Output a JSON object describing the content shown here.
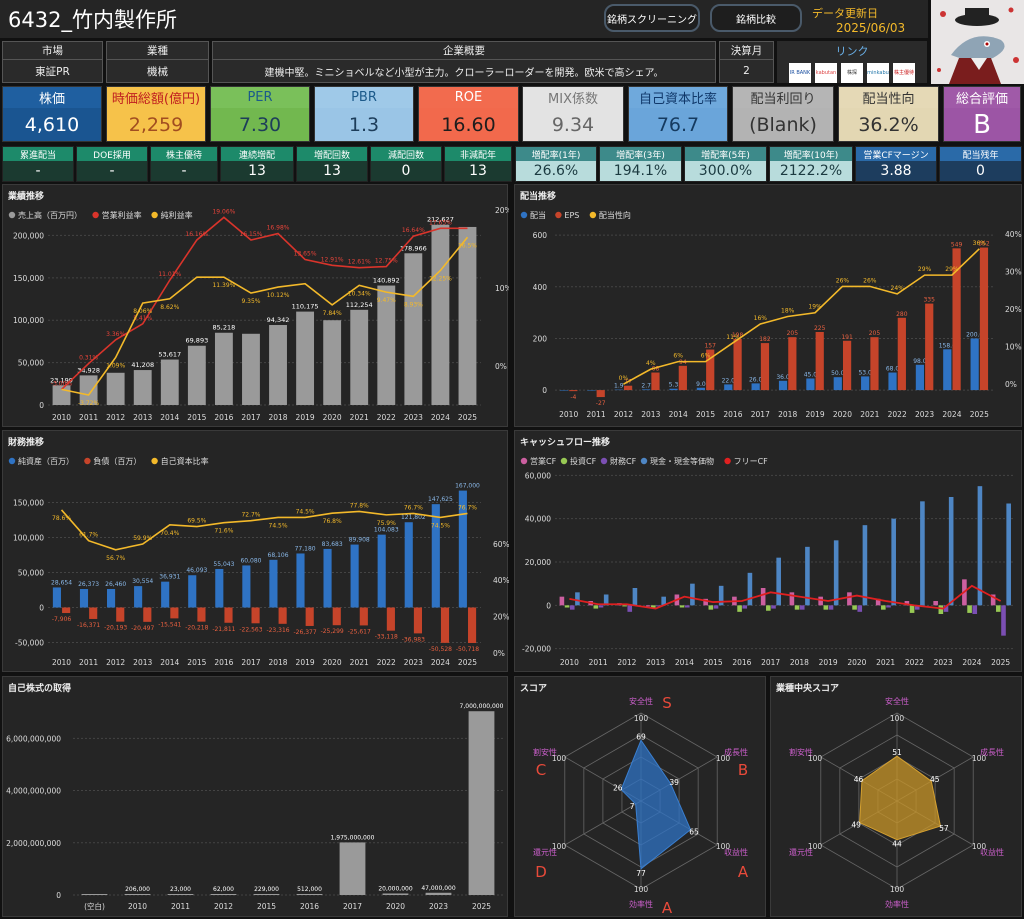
{
  "header": {
    "title": "6432_竹内製作所",
    "btn_screening": "銘柄スクリーニング",
    "btn_compare": "銘柄比較",
    "update_label": "データ更新日",
    "update_date": "2025/06/03"
  },
  "info": {
    "market_label": "市場",
    "market": "東証PR",
    "industry_label": "業種",
    "industry": "機械",
    "overview_label": "企業概要",
    "overview": "建機中堅。ミニショベルなど小型が主力。クローラーローダーを開発。欧米で高シェア。",
    "fiscal_label": "決算月",
    "fiscal": "2",
    "link_label": "リンク",
    "links": [
      "IR BANK",
      "kabutan",
      "株探",
      "minkabu",
      "株主優待"
    ]
  },
  "kpis": [
    {
      "label": "株価",
      "value": "4,610",
      "lbg": "#1f5fa0",
      "vbg": "#1a5591",
      "lc": "#fff",
      "vc": "#fff"
    },
    {
      "label": "時価総額(億円)",
      "value": "2,259",
      "lbg": "#f6c24a",
      "vbg": "#f6c24a",
      "lc": "#c02020",
      "vc": "#a14d20"
    },
    {
      "label": "PER",
      "value": "7.30",
      "lbg": "#7ac05a",
      "vbg": "#72b84f",
      "lc": "#1c5a8a",
      "vc": "#1d3d5a"
    },
    {
      "label": "PBR",
      "value": "1.3",
      "lbg": "#9fc9e8",
      "vbg": "#9ac5e6",
      "lc": "#1c5a8a",
      "vc": "#1d3d5a"
    },
    {
      "label": "ROE",
      "value": "16.60",
      "lbg": "#f26b4e",
      "vbg": "#f2694c",
      "lc": "#ffffff",
      "vc": "#1d1d1d"
    },
    {
      "label": "MIX係数",
      "value": "9.34",
      "lbg": "#e3e3e3",
      "vbg": "#e3e3e3",
      "lc": "#777",
      "vc": "#666"
    },
    {
      "label": "自己資本比率",
      "value": "76.7",
      "lbg": "#6fa9dc",
      "vbg": "#6aa5da",
      "lc": "#10386a",
      "vc": "#153a5f"
    },
    {
      "label": "配当利回り",
      "value": "(Blank)",
      "lbg": "#b5b5b5",
      "vbg": "#b3b3b3",
      "lc": "#333",
      "vc": "#333"
    },
    {
      "label": "配当性向",
      "value": "36.2%",
      "lbg": "#e5d9b6",
      "vbg": "#e3d7b3",
      "lc": "#333",
      "vc": "#333"
    },
    {
      "label": "総合評価",
      "value": "B",
      "lbg": "#a05aa8",
      "vbg": "#9c55a5",
      "lc": "#fff",
      "vc": "#fff"
    }
  ],
  "small_kpis": [
    {
      "label": "累進配当",
      "value": "-",
      "bg": "#1d8a6a"
    },
    {
      "label": "DOE採用",
      "value": "-",
      "bg": "#1d8a6a"
    },
    {
      "label": "株主優待",
      "value": "-",
      "bg": "#1d8a6a"
    },
    {
      "label": "連続増配",
      "value": "13",
      "bg": "#1d8a6a"
    },
    {
      "label": "増配回数",
      "value": "13",
      "bg": "#1d8a6a"
    },
    {
      "label": "減配回数",
      "value": "0",
      "bg": "#1d8a6a"
    },
    {
      "label": "非減配年",
      "value": "13",
      "bg": "#1d8a6a"
    },
    {
      "label": "増配率(1年)",
      "value": "26.6%",
      "bg": "#3d8a8a"
    },
    {
      "label": "増配率(3年)",
      "value": "194.1%",
      "bg": "#3d8a8a"
    },
    {
      "label": "増配率(5年)",
      "value": "300.0%",
      "bg": "#3d8a8a"
    },
    {
      "label": "増配率(10年)",
      "value": "2122.2%",
      "bg": "#3d8a8a"
    },
    {
      "label": "営業CFマージン",
      "value": "3.88",
      "bg": "#2a6aa8"
    },
    {
      "label": "配当残年",
      "value": "0",
      "bg": "#2a6aa8"
    }
  ],
  "colors": {
    "gray": "#9a9a9a",
    "red": "#d9342b",
    "yellow": "#f3b92a",
    "blue": "#2f73c4",
    "orange": "#c6442a",
    "green": "#98c954",
    "purple": "#7b4fb3",
    "lblue": "#4e86c4",
    "pink": "#cc5fa0"
  },
  "chart_data": [
    {
      "id": "perf",
      "type": "bar",
      "title": "業績推移",
      "legend": [
        "売上高（百万円）",
        "営業利益率",
        "純利益率"
      ],
      "categories": [
        "2010",
        "2011",
        "2012",
        "2013",
        "2014",
        "2015",
        "2016",
        "2017",
        "2018",
        "2019",
        "2020",
        "2021",
        "2022",
        "2023",
        "2024",
        "2025"
      ],
      "series": [
        {
          "name": "売上高（百万円）",
          "values": [
            23199,
            34928,
            38000,
            41208,
            53617,
            69893,
            85218,
            84000,
            94342,
            110175,
            100000,
            112254,
            140892,
            178966,
            212627,
            210000
          ],
          "labels": [
            "23,199",
            "34,928",
            "",
            "41,208",
            "53,617",
            "69,893",
            "85,218",
            "",
            "94,342",
            "110,175",
            "",
            "112,254",
            "140,892",
            "178,966",
            "212,627",
            ""
          ]
        },
        {
          "name": "営業利益率",
          "values": [
            -3.0,
            0.31,
            3.36,
            5.41,
            11.01,
            16.16,
            19.06,
            16.15,
            16.98,
            13.65,
            12.91,
            12.61,
            12.75,
            16.64,
            17.65,
            17.65
          ],
          "labels": [
            "-3.00%",
            "0.31%",
            "3.36%",
            "5.41%",
            "11.01%",
            "16.16%",
            "19.06%",
            "16.15%",
            "16.98%",
            "13.65%",
            "12.91%",
            "12.61%",
            "12.75%",
            "16.64%",
            "17.65%",
            ""
          ]
        },
        {
          "name": "純利益率",
          "values": [
            -3.0,
            -3.72,
            1.09,
            8.06,
            8.62,
            11.39,
            11.39,
            9.35,
            10.12,
            10.55,
            7.84,
            10.34,
            9.47,
            8.93,
            12.25,
            16.5
          ],
          "labels": [
            "",
            "-3.72%",
            "1.09%",
            "8.06%",
            "8.62%",
            "",
            "11.39%",
            "9.35%",
            "10.12%",
            "",
            "7.84%",
            "10.34%",
            "9.47%",
            "8.93%",
            "12.25%",
            "16.5%"
          ]
        }
      ],
      "ylim_left": [
        0,
        230000
      ],
      "yticks_left": [
        0,
        50000,
        100000,
        150000,
        200000
      ],
      "ylim_right": [
        -5,
        20
      ],
      "yticks_right": [
        0,
        10,
        20
      ]
    },
    {
      "id": "div",
      "type": "bar",
      "title": "配当推移",
      "legend": [
        "配当",
        "EPS",
        "配当性向"
      ],
      "categories": [
        "2010",
        "2011",
        "2012",
        "2013",
        "2014",
        "2015",
        "2016",
        "2017",
        "2018",
        "2019",
        "2020",
        "2021",
        "2022",
        "2023",
        "2024",
        "2025"
      ],
      "series": [
        {
          "name": "配当",
          "values": [
            0,
            0,
            1.9,
            2.7,
            5.3,
            9.0,
            22.0,
            26.0,
            36.0,
            45.0,
            50.0,
            53.0,
            68.0,
            98.0,
            158.0,
            200.0
          ]
        },
        {
          "name": "EPS",
          "values": [
            -4,
            -27,
            17,
            68,
            94,
            157,
            198,
            182,
            205,
            225,
            191,
            205,
            280,
            335,
            549,
            552
          ]
        },
        {
          "name": "配当性向",
          "values": [
            null,
            null,
            0,
            4,
            6,
            6,
            11,
            16,
            18,
            19,
            26,
            26,
            24,
            29,
            29,
            36
          ]
        }
      ],
      "ylim_left": [
        -50,
        620
      ],
      "yticks_left": [
        0,
        200,
        400,
        600
      ],
      "ylim_right": [
        -5,
        41
      ],
      "yticks_right": [
        0,
        10,
        20,
        30,
        40
      ]
    },
    {
      "id": "fin",
      "type": "bar",
      "title": "財務推移",
      "legend": [
        "純資産（百万）",
        "負債（百万）",
        "自己資本比率"
      ],
      "categories": [
        "2010",
        "2011",
        "2012",
        "2013",
        "2014",
        "2015",
        "2016",
        "2017",
        "2018",
        "2019",
        "2020",
        "2021",
        "2022",
        "2023",
        "2024",
        "2025"
      ],
      "series": [
        {
          "name": "純資産（百万）",
          "values": [
            28654,
            26373,
            26460,
            30554,
            36931,
            46093,
            55043,
            60080,
            68106,
            77180,
            83683,
            89908,
            104083,
            121802,
            147625,
            167000
          ]
        },
        {
          "name": "負債（百万）",
          "values": [
            -7906,
            -16371,
            -20193,
            -20497,
            -15541,
            -20218,
            -21811,
            -22563,
            -23316,
            -26377,
            -25299,
            -25617,
            -33118,
            -36983,
            -50528,
            -50718
          ]
        },
        {
          "name": "自己資本比率",
          "values": [
            78.6,
            61.7,
            56.7,
            59.9,
            70.4,
            69.5,
            71.6,
            72.7,
            74.5,
            74.5,
            76.8,
            77.8,
            75.9,
            76.7,
            74.5,
            76.7
          ]
        }
      ],
      "ylim_left": [
        -65000,
        195000
      ],
      "yticks_left": [
        -50000,
        0,
        50000,
        100000,
        150000
      ],
      "ylim_right": [
        0,
        100
      ],
      "yticks_right": [
        0,
        20,
        40,
        60
      ]
    },
    {
      "id": "cf",
      "type": "bar",
      "title": "キャッシュフロー推移",
      "legend": [
        "営業CF",
        "投資CF",
        "財務CF",
        "現金・現金等価物",
        "フリーCF"
      ],
      "categories": [
        "2010",
        "2011",
        "2012",
        "2013",
        "2014",
        "2015",
        "2016",
        "2017",
        "2018",
        "2019",
        "2020",
        "2021",
        "2022",
        "2023",
        "2024",
        "2025"
      ],
      "series": [
        {
          "name": "営業CF",
          "values": [
            4000,
            2000,
            1000,
            -500,
            5000,
            3000,
            4000,
            8000,
            6000,
            4000,
            6000,
            3000,
            2000,
            2000,
            12000,
            5000
          ]
        },
        {
          "name": "投資CF",
          "values": [
            -1000,
            -1500,
            -500,
            -1000,
            -1000,
            -2000,
            -3000,
            -2500,
            -2000,
            -2000,
            -2000,
            -2000,
            -3500,
            -4000,
            -3500,
            -3000
          ]
        },
        {
          "name": "財務CF",
          "values": [
            -2000,
            -1000,
            -3000,
            -500,
            -1000,
            -1500,
            -1500,
            -1500,
            -2000,
            -2000,
            -3000,
            -1000,
            -2000,
            -3000,
            -4000,
            -14000
          ]
        },
        {
          "name": "現金・現金等価物",
          "values": [
            6000,
            5000,
            8000,
            4000,
            10000,
            9000,
            15000,
            22000,
            27000,
            30000,
            37000,
            40000,
            48000,
            50000,
            55000,
            47000
          ]
        },
        {
          "name": "フリーCF",
          "values": [
            3000,
            500,
            500,
            -1500,
            4000,
            1500,
            2000,
            6000,
            4000,
            2000,
            4500,
            2000,
            0,
            -1500,
            9000,
            2000
          ]
        }
      ],
      "ylim": [
        -22000,
        62000
      ],
      "yticks": [
        -20000,
        0,
        20000,
        40000,
        60000
      ]
    },
    {
      "id": "buyback",
      "type": "bar",
      "title": "自己株式の取得",
      "categories": [
        "(空白)",
        "2010",
        "2011",
        "2012",
        "2015",
        "2016",
        "2017",
        "2020",
        "2023",
        "2025"
      ],
      "values": [
        0,
        206000,
        23000,
        62000,
        229000,
        512000,
        1975000000,
        20000000,
        47000000,
        7000000000
      ],
      "labels": [
        "",
        "206,000",
        "23,000",
        "62,000",
        "229,000",
        "512,000",
        "1,975,000,000",
        "20,000,000",
        "47,000,000",
        "7,000,000,000"
      ],
      "ylim": [
        0,
        7200000000
      ],
      "yticks": [
        0,
        2000000000,
        4000000000,
        6000000000
      ]
    },
    {
      "id": "score",
      "type": "radar",
      "title": "スコア",
      "axes": [
        "安全性",
        "成長性",
        "収益性",
        "効率性",
        "還元性",
        "割安性"
      ],
      "values": [
        69,
        39,
        65,
        77,
        7,
        26
      ],
      "grades": [
        "S",
        "B",
        "A",
        "A",
        "D",
        "C"
      ],
      "max": 100
    },
    {
      "id": "industry",
      "type": "radar",
      "title": "業種中央スコア",
      "axes": [
        "安全性",
        "成長性",
        "収益性",
        "効率性",
        "還元性",
        "割安性"
      ],
      "values": [
        51,
        45,
        57,
        44,
        49,
        46
      ],
      "max": 100
    }
  ]
}
